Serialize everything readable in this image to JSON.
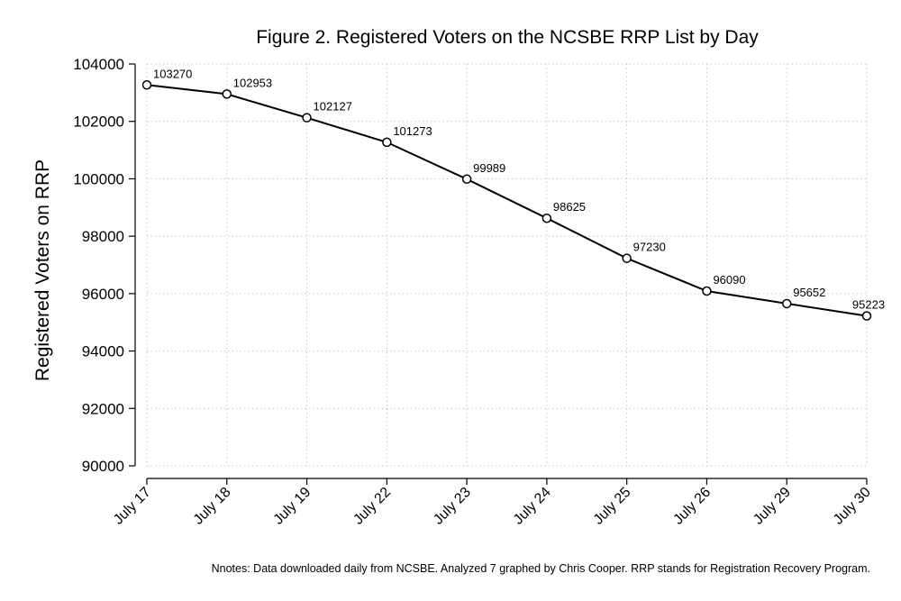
{
  "chart_data": {
    "type": "line",
    "title": "Figure 2. Registered Voters on the NCSBE RRP List by Day",
    "xlabel": "",
    "ylabel": "Registered Voters on RRP",
    "categories": [
      "July 17",
      "July 18",
      "July 19",
      "July 22",
      "July 23",
      "July 24",
      "July 25",
      "July 26",
      "July 29",
      "July 30"
    ],
    "series": [
      {
        "name": "Registered Voters",
        "values": [
          103270,
          102953,
          102127,
          101273,
          99989,
          98625,
          97230,
          96090,
          95652,
          95223
        ]
      }
    ],
    "data_labels": [
      "103270",
      "102953",
      "102127",
      "101273",
      "99989",
      "98625",
      "97230",
      "96090",
      "95652",
      "95223"
    ],
    "ylim": [
      90000,
      104000
    ],
    "yticks": [
      90000,
      92000,
      94000,
      96000,
      98000,
      100000,
      102000,
      104000
    ],
    "ytick_labels": [
      "90000",
      "92000",
      "94000",
      "96000",
      "98000",
      "100000",
      "102000",
      "104000"
    ],
    "grid": true,
    "legend": "none"
  },
  "footnote": "Nnotes: Data downloaded daily from NCSBE. Analyzed 7 graphed by Chris Cooper. RRP stands for Registration Recovery Program.",
  "colors": {
    "line": "#000000",
    "grid": "#c8c8c8",
    "marker_fill": "#ffffff"
  }
}
